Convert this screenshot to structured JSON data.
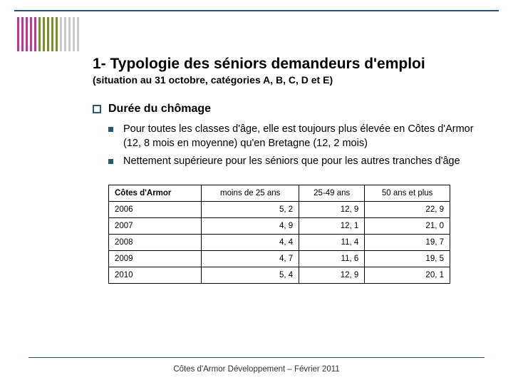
{
  "stripes": {
    "colors": [
      "#b33f8f",
      "#b33f8f",
      "#b33f8f",
      "#b33f8f",
      "#b33f8f",
      "#7a8a3a",
      "#7a8a3a",
      "#7a8a3a",
      "#7a8a3a",
      "#7a8a3a",
      "#c9c9c9",
      "#c9c9c9",
      "#c9c9c9",
      "#c9c9c9",
      "#c9c9c9"
    ]
  },
  "title": "1- Typologie des séniors demandeurs d'emploi",
  "subtitle": "(situation au 31 octobre, catégories A, B, C, D et E)",
  "section_title": "Durée du chômage",
  "bullets": [
    "Pour toutes les classes d'âge, elle est toujours plus élevée en Côtes d'Armor (12, 8 mois en moyenne) qu'en Bretagne (12, 2 mois)",
    "Nettement supérieure pour les séniors que pour les autres tranches d'âge"
  ],
  "table": {
    "columns": [
      "Côtes d'Armor",
      "moins de 25 ans",
      "25-49 ans",
      "50 ans et plus"
    ],
    "rows": [
      [
        "2006",
        "5, 2",
        "12, 9",
        "22, 9"
      ],
      [
        "2007",
        "4, 9",
        "12, 1",
        "21, 0"
      ],
      [
        "2008",
        "4, 4",
        "11, 4",
        "19, 7"
      ],
      [
        "2009",
        "4, 7",
        "11, 6",
        "19, 5"
      ],
      [
        "2010",
        "5, 4",
        "12, 9",
        "20, 1"
      ]
    ]
  },
  "footer": "Côtes d'Armor Développement – Février 2011",
  "colors": {
    "rule": "#2b5470",
    "bullet_border": "#2b5470",
    "bullet_fill": "#2b5470"
  }
}
